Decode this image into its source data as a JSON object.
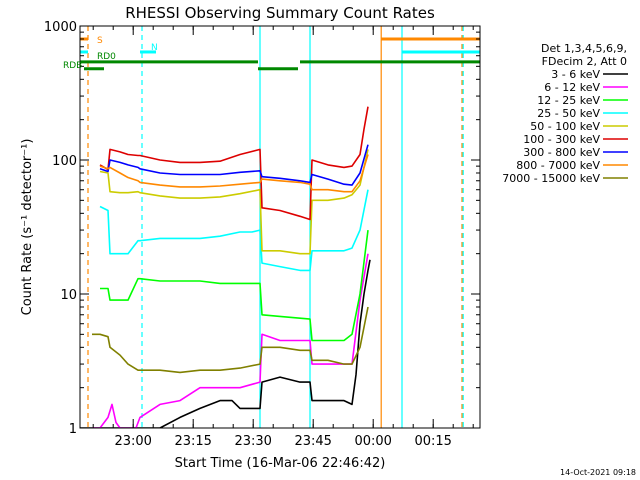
{
  "chart_data": {
    "type": "line",
    "title": "RHESSI Observing Summary Count Rates",
    "xlabel": "Start Time (16-Mar-06 22:46:42)",
    "ylabel": "Count Rate (s⁻¹ detector⁻¹)",
    "x_unit": "minutes after 22:46:42",
    "xlim": [
      0,
      100
    ],
    "ylim": [
      1,
      1000
    ],
    "y_scale": "log",
    "x_ticks": [
      {
        "label": "23:00",
        "x": 13.3
      },
      {
        "label": "23:15",
        "x": 28.3
      },
      {
        "label": "23:30",
        "x": 43.3
      },
      {
        "label": "23:45",
        "x": 58.3
      },
      {
        "label": "00:00",
        "x": 73.3
      },
      {
        "label": "00:15",
        "x": 88.3
      }
    ],
    "y_ticks": [
      {
        "label": "1",
        "y": 1
      },
      {
        "label": "10",
        "y": 10
      },
      {
        "label": "100",
        "y": 100
      },
      {
        "label": "1000",
        "y": 1000
      }
    ],
    "legend_header": [
      "Det 1,3,4,5,6,9,",
      "FDecim 2, Att 0"
    ],
    "legend_placement": "right",
    "series": [
      {
        "name": "3 - 6 keV",
        "color": "#000000",
        "x": [
          0,
          5,
          8,
          10,
          15,
          20,
          25,
          30,
          35,
          38,
          40,
          45,
          45.5,
          50,
          55,
          57.5,
          58,
          62,
          66,
          68,
          69,
          70,
          71,
          72,
          72.5
        ],
        "y": [
          1,
          1,
          1,
          1,
          1,
          1,
          1.2,
          1.4,
          1.6,
          1.6,
          1.4,
          1.4,
          2.2,
          2.4,
          2.2,
          2.2,
          1.6,
          1.6,
          1.6,
          1.5,
          2.5,
          6,
          10,
          15,
          18
        ]
      },
      {
        "name": "6 - 12 keV",
        "color": "#ff00ff",
        "x": [
          3,
          5,
          7,
          8,
          9,
          10,
          12,
          14,
          15,
          20,
          25,
          30,
          35,
          40,
          45,
          45.5,
          50,
          55,
          57.5,
          58,
          62,
          66,
          68,
          70,
          72
        ],
        "y": [
          1,
          1,
          1.2,
          1.5,
          1.1,
          1,
          1,
          1,
          1.2,
          1.5,
          1.6,
          2,
          2,
          2,
          2.2,
          5,
          4.5,
          4.5,
          4.5,
          3,
          3,
          3,
          3,
          9,
          20
        ]
      },
      {
        "name": "12 - 25 keV",
        "color": "#00ff00",
        "x": [
          5,
          7,
          7.5,
          10,
          12,
          14.5,
          15,
          20,
          25,
          30,
          35,
          40,
          45,
          45.5,
          50,
          55,
          57.5,
          58,
          62,
          66,
          68,
          70,
          72
        ],
        "y": [
          11,
          11,
          9,
          9,
          9,
          13,
          13,
          12.5,
          12.5,
          12.5,
          12,
          12,
          12,
          7,
          6.8,
          6.6,
          6.5,
          4.5,
          4.5,
          4.5,
          5,
          10,
          30
        ]
      },
      {
        "name": "25 - 50 keV",
        "color": "#00ffff",
        "x": [
          5,
          7,
          7.5,
          10,
          12,
          14.5,
          15,
          20,
          25,
          30,
          35,
          40,
          43,
          45,
          45.5,
          50,
          55,
          57.5,
          58,
          62,
          66,
          68,
          70,
          72
        ],
        "y": [
          45,
          42,
          20,
          20,
          20,
          25,
          25,
          26,
          26,
          26,
          27,
          29,
          29,
          30,
          17,
          16,
          15,
          15,
          21,
          21,
          21,
          22,
          30,
          60
        ]
      },
      {
        "name": "50 - 100 keV",
        "color": "#cccc00",
        "x": [
          5,
          7,
          7.5,
          10,
          12,
          14.5,
          15,
          20,
          25,
          30,
          35,
          40,
          45,
          45.5,
          50,
          55,
          57.5,
          58,
          62,
          66,
          68,
          70,
          72
        ],
        "y": [
          82,
          80,
          58,
          57,
          57,
          58,
          57,
          54,
          52,
          52,
          53,
          56,
          60,
          21,
          21,
          20,
          20,
          50,
          50,
          52,
          55,
          65,
          120
        ]
      },
      {
        "name": "100 - 300 keV",
        "color": "#dd0000",
        "x": [
          5,
          7,
          7.5,
          10,
          12,
          14.5,
          15,
          20,
          25,
          30,
          35,
          40,
          45,
          45.5,
          50,
          55,
          57.5,
          58,
          62,
          66,
          68,
          70,
          71,
          72
        ],
        "y": [
          92,
          85,
          120,
          115,
          110,
          108,
          108,
          100,
          96,
          96,
          98,
          110,
          120,
          44,
          42,
          38,
          36,
          100,
          92,
          88,
          90,
          110,
          170,
          250
        ]
      },
      {
        "name": "300 - 800 keV",
        "color": "#0000ff",
        "x": [
          5,
          7,
          7.5,
          10,
          12,
          14.5,
          15,
          20,
          25,
          30,
          35,
          40,
          45,
          45.5,
          50,
          55,
          57.5,
          58,
          62,
          66,
          68,
          70,
          72
        ],
        "y": [
          86,
          82,
          100,
          96,
          92,
          88,
          86,
          80,
          78,
          78,
          78,
          81,
          83,
          75,
          73,
          70,
          68,
          78,
          72,
          66,
          65,
          80,
          130
        ]
      },
      {
        "name": "800 - 7000 keV",
        "color": "#ff8800",
        "x": [
          5,
          7,
          7.5,
          10,
          12,
          14.5,
          15,
          20,
          25,
          30,
          35,
          40,
          45,
          45.5,
          50,
          55,
          57.5,
          58,
          62,
          66,
          68,
          70,
          72
        ],
        "y": [
          90,
          86,
          88,
          80,
          74,
          70,
          68,
          65,
          63,
          63,
          64,
          66,
          68,
          72,
          70,
          68,
          66,
          60,
          60,
          58,
          58,
          70,
          110
        ]
      },
      {
        "name": "7000 - 15000 keV",
        "color": "#808000",
        "x": [
          3,
          5,
          7,
          7.5,
          10,
          12,
          14.5,
          15,
          20,
          25,
          30,
          35,
          40,
          45,
          45.5,
          50,
          55,
          57.5,
          58,
          62,
          66,
          68,
          70,
          72
        ],
        "y": [
          5,
          5,
          4.8,
          4,
          3.5,
          3,
          2.7,
          2.7,
          2.7,
          2.6,
          2.7,
          2.7,
          2.8,
          3,
          4,
          4,
          3.8,
          3.8,
          3.2,
          3.2,
          3,
          3,
          4,
          8
        ]
      }
    ],
    "state_bars": [
      {
        "label": "S",
        "color": "#ff8800",
        "y": 800,
        "segments": [
          [
            0,
            2
          ],
          [
            75.3,
            100
          ]
        ]
      },
      {
        "label": "N",
        "color": "#00ffff",
        "y": 640,
        "segments": [
          [
            0,
            2
          ],
          [
            15,
            19
          ],
          [
            80.5,
            100
          ]
        ]
      },
      {
        "label": "RD0",
        "color": "#008800",
        "y": 540,
        "segments": [
          [
            0,
            44.5
          ],
          [
            55,
            100
          ]
        ]
      },
      {
        "label": "RDB",
        "color": "#008800",
        "y": 480,
        "segments": [
          [
            1,
            6
          ],
          [
            44.5,
            54.5
          ]
        ]
      }
    ],
    "vertical_markers": [
      {
        "color": "#ff8800",
        "x": 2,
        "style": "dashed"
      },
      {
        "color": "#00ffff",
        "x": 15.5,
        "style": "dashed"
      },
      {
        "color": "#00ffff",
        "x": 45,
        "style": "solid"
      },
      {
        "color": "#00ffff",
        "x": 57.5,
        "style": "solid"
      },
      {
        "color": "#ff8800",
        "x": 75.3,
        "style": "solid"
      },
      {
        "color": "#00ffff",
        "x": 80.5,
        "style": "solid"
      },
      {
        "color": "#ff8800",
        "x": 95.5,
        "style": "dashed"
      },
      {
        "color": "#00ffff",
        "x": 95.8,
        "style": "dashed"
      }
    ],
    "grid": false
  },
  "footer": {
    "timestamp": "14-Oct-2021 09:18"
  }
}
